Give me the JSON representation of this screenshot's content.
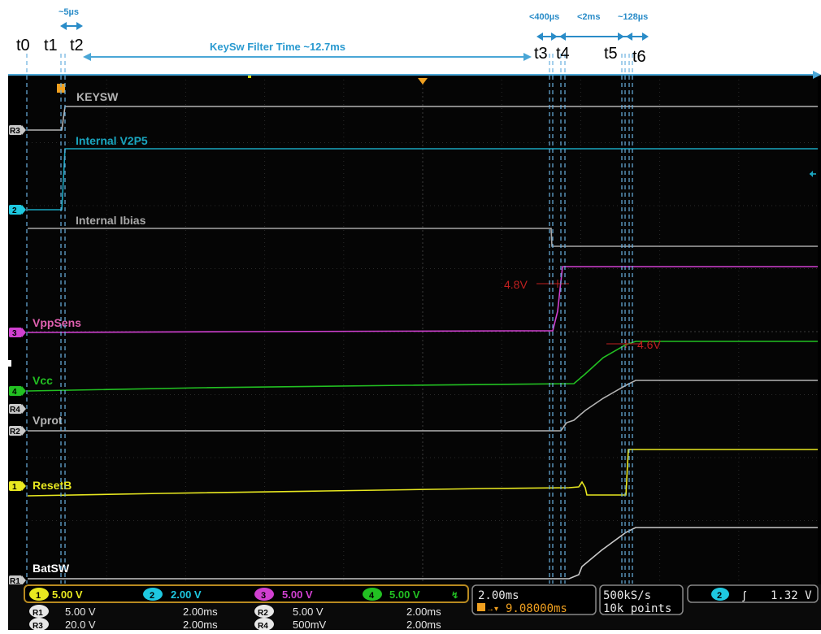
{
  "annotations": {
    "t_labels": [
      "t0",
      "t1",
      "t2",
      "t3",
      "t4",
      "t5",
      "t6"
    ],
    "delta_t1_t2": "~5µs",
    "keysw_filter": "KeySw Filter  Time ~12.7ms",
    "delta_t3_t4": "<400µs",
    "delta_t4_t5": "<2ms",
    "delta_t5_t6": "~128µs"
  },
  "signals": [
    {
      "id": "keysw",
      "label": "KEYSW",
      "color": "#b4b4b4"
    },
    {
      "id": "v2p5",
      "label": "Internal V2P5",
      "color": "#1aa6c0"
    },
    {
      "id": "ibias",
      "label": "Internal Ibias",
      "color": "#a8a8a8"
    },
    {
      "id": "vppsens",
      "label": "VppSens",
      "color": "#d040d0"
    },
    {
      "id": "vcc",
      "label": "Vcc",
      "color": "#22c022"
    },
    {
      "id": "vprot",
      "label": "Vprot",
      "color": "#b4b4b4"
    },
    {
      "id": "resetb",
      "label": "ResetB",
      "color": "#e8e820"
    },
    {
      "id": "batsw",
      "label": "BatSW",
      "color": "#c8c8c8"
    }
  ],
  "level_marks": {
    "vppsens_threshold": "4.8V",
    "vcc_threshold": "4.6V"
  },
  "side_markers": [
    "R3",
    "2",
    "3",
    "4",
    "R4",
    "R2",
    "1",
    "R1"
  ],
  "status": {
    "ch1": {
      "num": "1",
      "scale": "5.00 V",
      "color": "#e8e820"
    },
    "ch2": {
      "num": "2",
      "scale": "2.00 V",
      "color": "#1ec8e0"
    },
    "ch3": {
      "num": "3",
      "scale": "5.00 V",
      "color": "#d040d0"
    },
    "ch4": {
      "num": "4",
      "scale": "5.00 V",
      "color": "#22c022"
    },
    "bw_symbol": "↯",
    "r1": {
      "name": "R1",
      "scale": "5.00 V",
      "time": "2.00ms"
    },
    "r2": {
      "name": "R2",
      "scale": "5.00 V",
      "time": "2.00ms"
    },
    "r3": {
      "name": "R3",
      "scale": "20.0 V",
      "time": "2.00ms"
    },
    "r4": {
      "name": "R4",
      "scale": "500mV",
      "time": "2.00ms"
    },
    "timebase": "2.00ms",
    "trigger_position": "9.08000ms",
    "sample_rate": "500kS/s",
    "record_length": "10k points",
    "trigger_channel": "2",
    "trigger_slope": "ʃ",
    "trigger_level": "1.32 V"
  }
}
